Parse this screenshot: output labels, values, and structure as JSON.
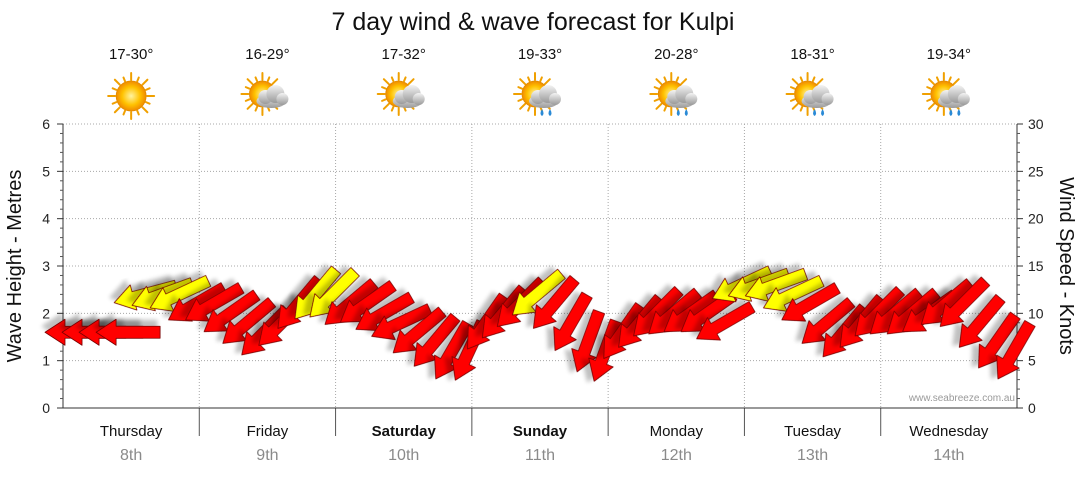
{
  "chart_data": {
    "type": "line",
    "title": "7 day wind & wave forecast for Kulpi",
    "ylabel_left": "Wave Height - Metres",
    "ylabel_right": "Wind Speed - Knots",
    "y_left_range": [
      0,
      6
    ],
    "y_left_ticks": [
      "0",
      "1",
      "2",
      "3",
      "4",
      "5",
      "6"
    ],
    "y_right_range": [
      0,
      30
    ],
    "y_right_ticks": [
      "0",
      "5",
      "10",
      "15",
      "20",
      "25",
      "30"
    ],
    "grid": true,
    "watermark": "www.seabreeze.com.au",
    "days": [
      {
        "name": "Thursday",
        "date": "8th",
        "temp": "17-30°",
        "weather_icon": "sunny-icon",
        "bold": false
      },
      {
        "name": "Friday",
        "date": "9th",
        "temp": "16-29°",
        "weather_icon": "partly-cloudy-icon",
        "bold": false
      },
      {
        "name": "Saturday",
        "date": "10th",
        "temp": "17-32°",
        "weather_icon": "partly-cloudy-icon",
        "bold": true
      },
      {
        "name": "Sunday",
        "date": "11th",
        "temp": "19-33°",
        "weather_icon": "sun-showers-icon",
        "bold": true
      },
      {
        "name": "Monday",
        "date": "12th",
        "temp": "20-28°",
        "weather_icon": "sun-showers-icon",
        "bold": false
      },
      {
        "name": "Tuesday",
        "date": "13th",
        "temp": "18-31°",
        "weather_icon": "sun-showers-icon",
        "bold": false
      },
      {
        "name": "Wednesday",
        "date": "14th",
        "temp": "19-34°",
        "weather_icon": "sun-showers-icon",
        "bold": false
      }
    ],
    "series": [
      {
        "kind": "wind",
        "units": "knots",
        "x_hours": [
          0,
          3,
          6,
          9,
          12,
          15,
          18,
          21,
          24,
          27,
          30,
          33,
          36,
          39,
          42,
          45,
          48,
          51,
          54,
          57,
          60,
          63,
          66,
          69,
          72,
          75,
          78,
          81,
          84,
          87,
          90,
          93,
          96,
          99,
          102,
          105,
          108,
          111,
          114,
          117,
          120,
          123,
          126,
          129,
          132,
          135,
          138,
          141,
          144,
          147,
          150,
          153,
          156,
          159,
          162,
          165
        ],
        "values": [
          8,
          8,
          8,
          8,
          12,
          12,
          12,
          11,
          11,
          10,
          9,
          8,
          9,
          11,
          12,
          12,
          11,
          11,
          10,
          9,
          8,
          7,
          6,
          6,
          9,
          10,
          11,
          12,
          11,
          9,
          7,
          6,
          8,
          9,
          10,
          10,
          10,
          10,
          9,
          13,
          13,
          13,
          12,
          11,
          9,
          8,
          9,
          10,
          10,
          10,
          10,
          11,
          11,
          9,
          7,
          6
        ],
        "directions_deg": [
          270,
          270,
          270,
          270,
          255,
          250,
          245,
          240,
          240,
          235,
          230,
          225,
          225,
          220,
          220,
          225,
          230,
          235,
          240,
          245,
          230,
          220,
          210,
          205,
          215,
          220,
          225,
          230,
          220,
          210,
          200,
          200,
          215,
          220,
          225,
          230,
          235,
          235,
          240,
          245,
          250,
          250,
          245,
          240,
          230,
          220,
          220,
          225,
          230,
          230,
          235,
          230,
          225,
          220,
          215,
          210
        ],
        "level_colors": {
          "light": "#ffff00",
          "strong": "#ff0000"
        },
        "yellow_threshold_knots": 12
      }
    ]
  }
}
